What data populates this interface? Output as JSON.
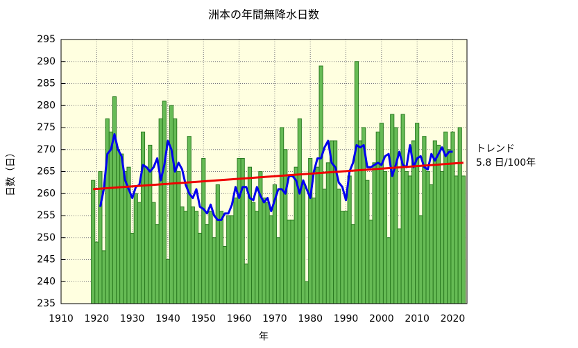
{
  "chart_data": {
    "type": "bar",
    "title": "洲本の年間無降水日数",
    "ylabel": "日数（日）",
    "xlabel": "年",
    "x": [
      1919,
      1920,
      1921,
      1922,
      1923,
      1924,
      1925,
      1926,
      1927,
      1928,
      1929,
      1930,
      1931,
      1932,
      1933,
      1934,
      1935,
      1936,
      1937,
      1938,
      1939,
      1940,
      1941,
      1942,
      1943,
      1944,
      1945,
      1946,
      1947,
      1948,
      1949,
      1950,
      1951,
      1952,
      1953,
      1954,
      1955,
      1956,
      1957,
      1958,
      1959,
      1960,
      1961,
      1962,
      1963,
      1964,
      1965,
      1966,
      1967,
      1968,
      1969,
      1970,
      1971,
      1972,
      1973,
      1974,
      1975,
      1976,
      1977,
      1978,
      1979,
      1980,
      1981,
      1982,
      1983,
      1984,
      1985,
      1986,
      1987,
      1988,
      1989,
      1990,
      1991,
      1992,
      1993,
      1994,
      1995,
      1996,
      1997,
      1998,
      1999,
      2000,
      2001,
      2002,
      2003,
      2004,
      2005,
      2006,
      2007,
      2008,
      2009,
      2010,
      2011,
      2012,
      2013,
      2014,
      2015,
      2016,
      2017,
      2018,
      2019,
      2020,
      2021,
      2022,
      2023
    ],
    "values": [
      263,
      249,
      265,
      247,
      277,
      274,
      282,
      270,
      269,
      265,
      266,
      251,
      260,
      258,
      274,
      266,
      271,
      258,
      253,
      277,
      281,
      245,
      280,
      277,
      265,
      257,
      256,
      273,
      257,
      256,
      251,
      268,
      253,
      256,
      250,
      262,
      256,
      248,
      255,
      255,
      259,
      268,
      268,
      244,
      266,
      258,
      256,
      265,
      259,
      258,
      255,
      262,
      250,
      275,
      270,
      254,
      254,
      266,
      277,
      262,
      240,
      268,
      259,
      266,
      289,
      261,
      267,
      272,
      272,
      261,
      256,
      256,
      264,
      253,
      290,
      272,
      275,
      263,
      254,
      267,
      274,
      276,
      265,
      250,
      278,
      275,
      252,
      278,
      265,
      264,
      272,
      276,
      255,
      273,
      265,
      262,
      272,
      271,
      265,
      274,
      270,
      274,
      264,
      275,
      264
    ],
    "color": "#66bb55",
    "edge_color": "#2a7a20",
    "moving_average": {
      "color": "#0000ee",
      "x": [
        1921,
        1922,
        1923,
        1924,
        1925,
        1926,
        1927,
        1928,
        1929,
        1930,
        1931,
        1932,
        1933,
        1934,
        1935,
        1936,
        1937,
        1938,
        1939,
        1940,
        1941,
        1942,
        1943,
        1944,
        1945,
        1946,
        1947,
        1948,
        1949,
        1950,
        1951,
        1952,
        1953,
        1954,
        1955,
        1956,
        1957,
        1958,
        1959,
        1960,
        1961,
        1962,
        1963,
        1964,
        1965,
        1966,
        1967,
        1968,
        1969,
        1970,
        1971,
        1972,
        1973,
        1974,
        1975,
        1976,
        1977,
        1978,
        1979,
        1980,
        1981,
        1982,
        1983,
        1984,
        1985,
        1986,
        1987,
        1988,
        1989,
        1990,
        1991,
        1992,
        1993,
        1994,
        1995,
        1996,
        1997,
        1998,
        1999,
        2000,
        2001,
        2002,
        2003,
        2004,
        2005,
        2006,
        2007,
        2008,
        2009,
        2010,
        2011,
        2012,
        2013,
        2014,
        2015,
        2016,
        2017,
        2018,
        2019,
        2020
      ],
      "values": [
        257,
        261,
        269,
        270,
        273.5,
        270,
        268.5,
        263,
        261,
        259,
        261.5,
        262,
        266.5,
        266,
        265,
        266,
        268,
        263,
        266.5,
        272,
        270,
        265,
        267,
        265.5,
        262,
        260,
        259,
        261,
        257,
        256.5,
        255.5,
        257.5,
        255,
        254,
        254,
        255.5,
        255.5,
        257.5,
        261.5,
        259,
        261.5,
        261.5,
        259,
        258.5,
        261.5,
        259.5,
        258,
        259,
        256,
        258.5,
        261,
        261,
        260,
        264,
        264,
        263,
        260,
        263,
        261,
        259,
        265,
        268,
        268,
        270.5,
        272,
        267,
        266,
        262.5,
        261.5,
        258.5,
        265,
        267,
        271,
        270.5,
        271,
        266,
        266,
        266.5,
        267,
        266.5,
        268.5,
        269,
        264,
        266.5,
        269.5,
        266.5,
        266,
        271,
        266,
        268,
        268.5,
        266,
        265.5,
        269,
        267.5,
        269,
        270.5,
        268.5,
        269.5,
        269.5
      ]
    },
    "trend": {
      "color": "#ee0000",
      "x": [
        1919,
        2023
      ],
      "values": [
        261,
        267
      ]
    },
    "annotation": [
      "トレンド",
      "5.8 日/100年"
    ],
    "xlim": [
      1910,
      2024
    ],
    "xticks": [
      1910,
      1920,
      1930,
      1940,
      1950,
      1960,
      1970,
      1980,
      1990,
      2000,
      2010,
      2020
    ],
    "ylim": [
      235,
      295
    ],
    "yticks": [
      235,
      240,
      245,
      250,
      255,
      260,
      265,
      270,
      275,
      280,
      285,
      290,
      295
    ],
    "grid": true,
    "background": "#ffffe0"
  }
}
